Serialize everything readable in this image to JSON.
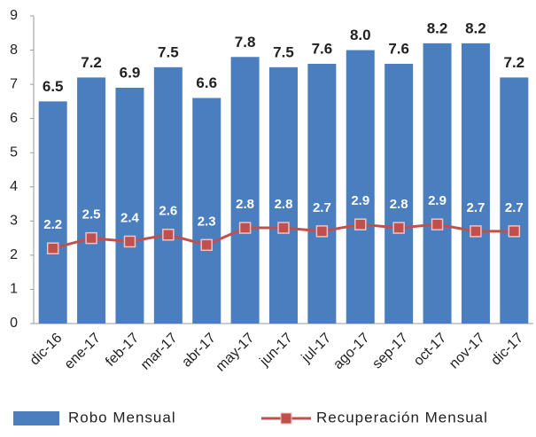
{
  "chart_data": {
    "type": "bar",
    "categories": [
      "dic-16",
      "ene-17",
      "feb-17",
      "mar-17",
      "abr-17",
      "may-17",
      "jun-17",
      "jul-17",
      "ago-17",
      "sep-17",
      "oct-17",
      "nov-17",
      "dic-17"
    ],
    "series": [
      {
        "name": "Robo Mensual",
        "type": "bar",
        "color": "#4a7ebf",
        "values": [
          6.5,
          7.2,
          6.9,
          7.5,
          6.6,
          7.8,
          7.5,
          7.6,
          8.0,
          7.6,
          8.2,
          8.2,
          7.2
        ],
        "value_labels": [
          "6.5",
          "7.2",
          "6.9",
          "7.5",
          "6.6",
          "7.8",
          "7.5",
          "7.6",
          "8.0",
          "7.6",
          "8.2",
          "8.2",
          "7.2"
        ]
      },
      {
        "name": "Recuperación Mensual",
        "type": "line",
        "color": "#c0504d",
        "values": [
          2.2,
          2.5,
          2.4,
          2.6,
          2.3,
          2.8,
          2.8,
          2.7,
          2.9,
          2.8,
          2.9,
          2.7,
          2.7
        ]
      }
    ],
    "ylim": [
      0,
      9
    ],
    "yticks": [
      0,
      1,
      2,
      3,
      4,
      5,
      6,
      7,
      8,
      9
    ],
    "legend": "bottom"
  }
}
